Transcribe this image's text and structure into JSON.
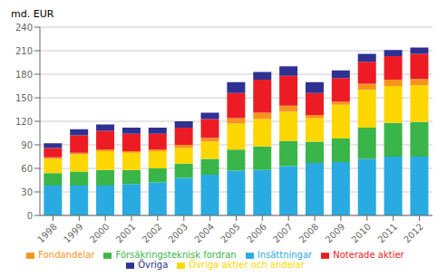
{
  "chart_data": {
    "type": "bar",
    "stacked": true,
    "grid": true,
    "legend": "bottom",
    "y_label": "md. EUR",
    "categories": [
      "1998",
      "1999",
      "2000",
      "2001",
      "2002",
      "2003",
      "2004",
      "2005",
      "2006",
      "2007",
      "2008",
      "2009",
      "2010",
      "2011",
      "2012"
    ],
    "series": [
      {
        "name": "Insättningar",
        "color": "#29ABE2",
        "values": [
          38,
          38,
          38,
          40,
          42,
          48,
          52,
          57,
          58,
          63,
          67,
          68,
          72,
          75,
          75
        ]
      },
      {
        "name": "Försäkringsteknisk fordran",
        "color": "#39B54A",
        "values": [
          16,
          18,
          20,
          18,
          18,
          18,
          20,
          27,
          30,
          32,
          27,
          30,
          40,
          43,
          44
        ]
      },
      {
        "name": "Övriga aktier och andelar",
        "color": "#FFD700",
        "values": [
          18,
          22,
          24,
          22,
          22,
          20,
          22,
          33,
          35,
          37,
          30,
          43,
          48,
          47,
          47
        ]
      },
      {
        "name": "Fondandelar",
        "color": "#F7941D",
        "values": [
          2,
          2,
          2,
          2,
          2,
          4,
          5,
          7,
          8,
          8,
          4,
          4,
          8,
          8,
          8
        ]
      },
      {
        "name": "Noterade aktier",
        "color": "#ED1C24",
        "values": [
          12,
          22,
          24,
          22,
          20,
          22,
          24,
          32,
          42,
          38,
          28,
          30,
          28,
          30,
          32
        ]
      },
      {
        "name": "Övriga",
        "color": "#2E3192",
        "values": [
          6,
          8,
          8,
          8,
          8,
          8,
          8,
          14,
          10,
          12,
          14,
          10,
          10,
          8,
          8
        ]
      }
    ],
    "ylim": [
      0,
      240
    ],
    "yticks": [
      0,
      30,
      60,
      90,
      120,
      150,
      180,
      210,
      240
    ]
  }
}
